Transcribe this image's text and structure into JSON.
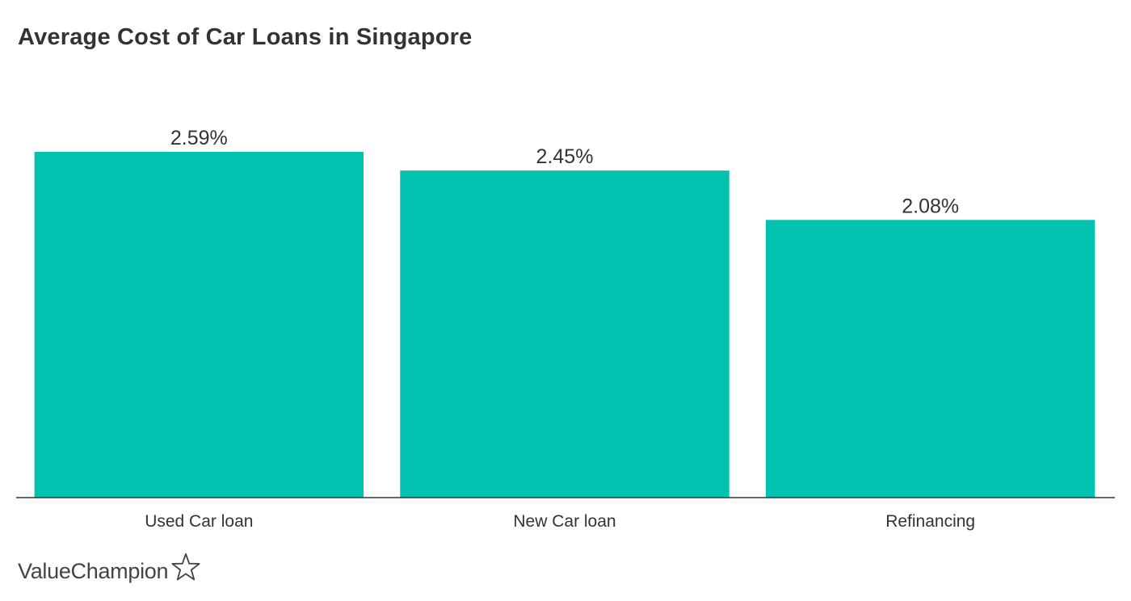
{
  "chart_data": {
    "type": "bar",
    "title": "Average Cost of Car Loans in Singapore",
    "categories": [
      "Used Car loan",
      "New Car loan",
      "Refinancing"
    ],
    "values": [
      2.59,
      2.45,
      2.08
    ],
    "value_labels": [
      "2.59%",
      "2.45%",
      "2.08%"
    ],
    "xlabel": "",
    "ylabel": "",
    "ylim": [
      0,
      2.59
    ],
    "unit": "%",
    "grid": false,
    "legend": "none",
    "bar_color": "#00C2AE",
    "axis_color": "#333333"
  },
  "brand": {
    "name": "ValueChampion",
    "icon": "star-outline-icon"
  }
}
